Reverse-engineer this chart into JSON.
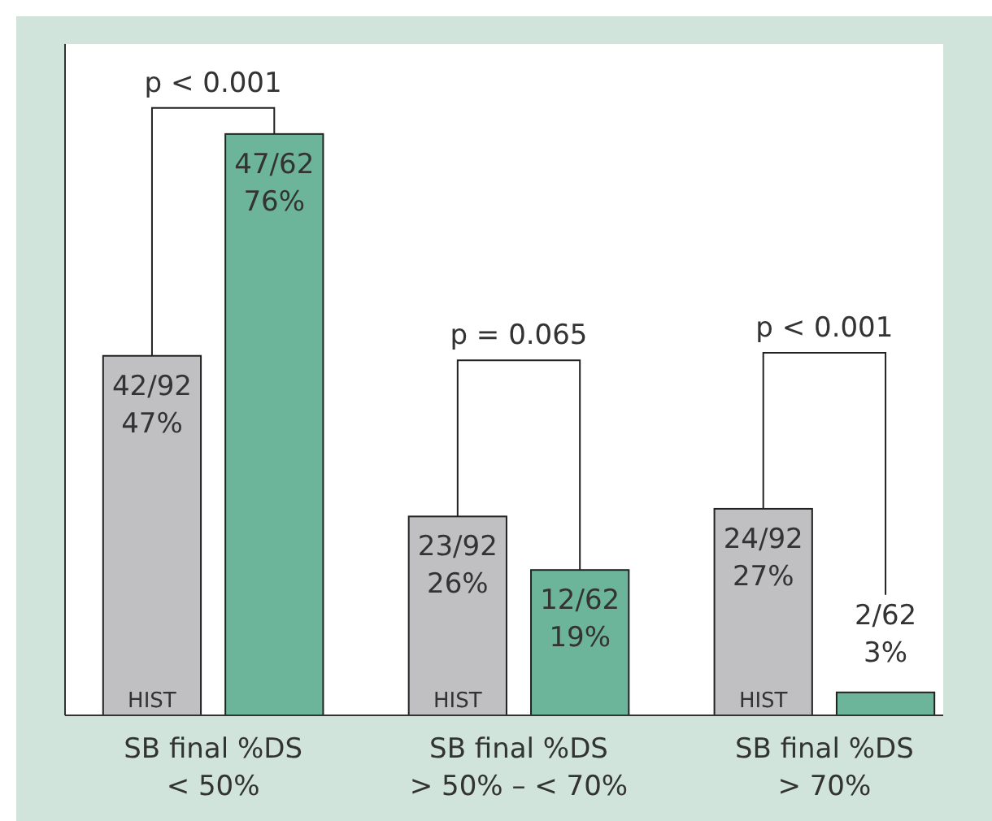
{
  "chart_data": {
    "type": "bar",
    "categories": [
      "SB final %DS\n< 50%",
      "SB final %DS\n> 50% – < 70%",
      "SB final %DS\n> 70%"
    ],
    "series": [
      {
        "name": "HIST",
        "color": "#c0bfc1",
        "values": [
          47,
          26,
          27
        ],
        "value_labels": [
          "42/92\n47%",
          "23/92\n26%",
          "24/92\n27%"
        ]
      },
      {
        "color": "#6db59a",
        "values": [
          76,
          19,
          3
        ],
        "value_labels": [
          "47/62\n76%",
          "12/62\n19%",
          "2/62\n3%"
        ]
      }
    ],
    "annotations": [
      "p < 0.001",
      "p = 0.065",
      "p < 0.001"
    ]
  }
}
